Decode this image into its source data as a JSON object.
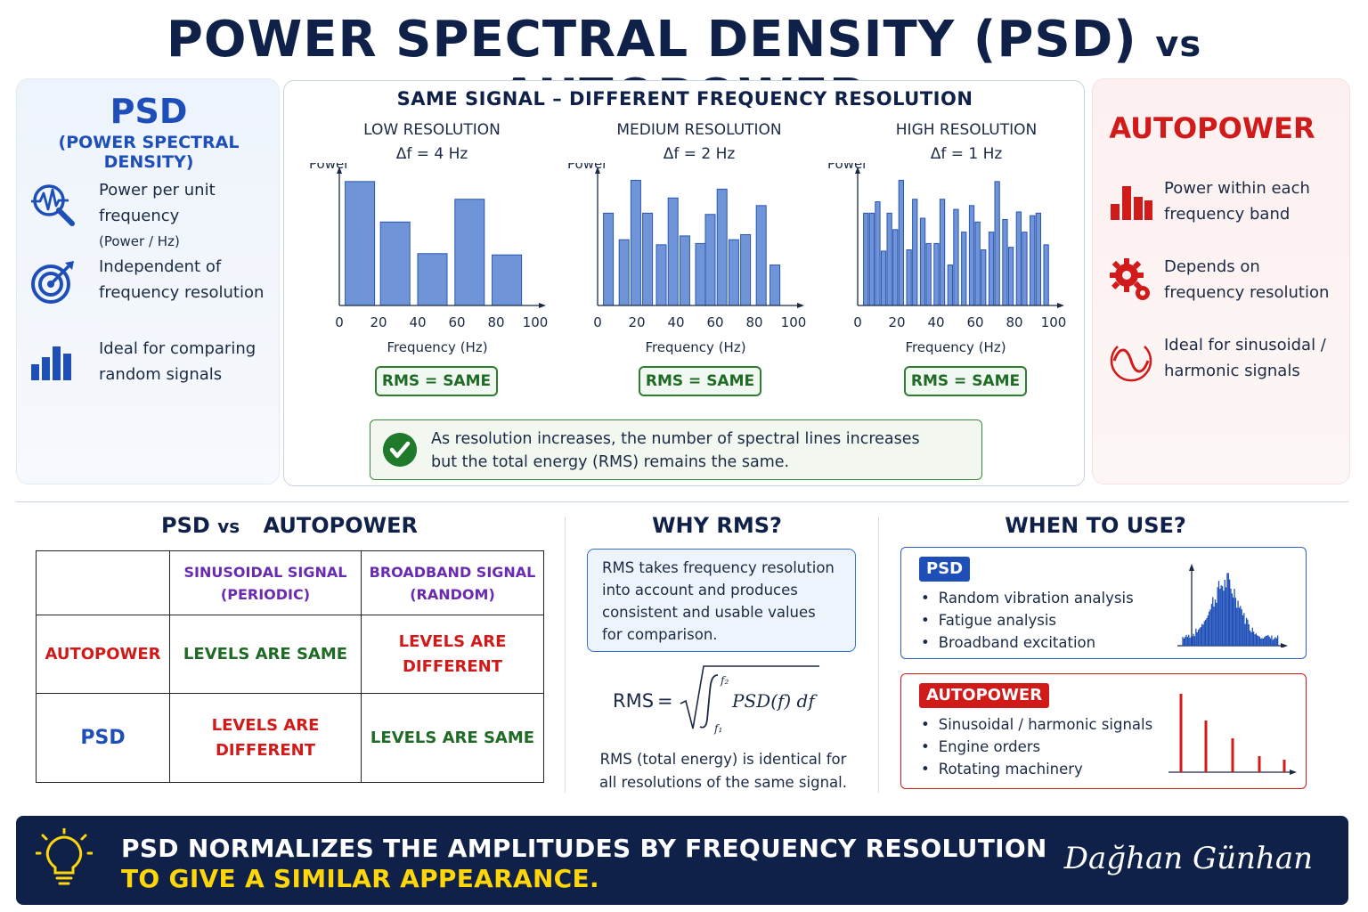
{
  "title": {
    "main": "POWER SPECTRAL DENSITY (PSD)",
    "vs": "vs",
    "end": "AUTOPOWER"
  },
  "psd_panel": {
    "title": "PSD",
    "subtitle": "(POWER SPECTRAL DENSITY)",
    "features": [
      {
        "icon": "pulse-magnifier-icon",
        "line1": "Power per unit frequency",
        "line2": "(Power / Hz)"
      },
      {
        "icon": "target-icon",
        "line1": "Independent of",
        "line2": "frequency resolution"
      },
      {
        "icon": "bar-chart-icon",
        "line1": "Ideal for comparing",
        "line2": "random signals"
      }
    ]
  },
  "autopower_panel": {
    "title": "AUTOPOWER",
    "features": [
      {
        "icon": "bar-chart-icon",
        "line1": "Power within each",
        "line2": "frequency band"
      },
      {
        "icon": "gear-icon",
        "line1": "Depends on",
        "line2": "frequency resolution"
      },
      {
        "icon": "sine-wave-icon",
        "line1": "Ideal for sinusoidal /",
        "line2": "harmonic signals"
      }
    ]
  },
  "center": {
    "title": "SAME SIGNAL – DIFFERENT FREQUENCY RESOLUTION",
    "charts": [
      {
        "heading": "LOW RESOLUTION",
        "df": "Δf = 4 Hz",
        "ylabel": "Power",
        "xlabel": "Frequency (Hz)",
        "rms": "RMS = SAME"
      },
      {
        "heading": "MEDIUM RESOLUTION",
        "df": "Δf = 2 Hz",
        "ylabel": "Power",
        "xlabel": "Frequency (Hz)",
        "rms": "RMS = SAME"
      },
      {
        "heading": "HIGH RESOLUTION",
        "df": "Δf = 1 Hz",
        "ylabel": "Power",
        "xlabel": "Frequency (Hz)",
        "rms": "RMS = SAME"
      }
    ],
    "note_line1": "As resolution increases, the number of spectral lines increases",
    "note_line2": "but the total energy (RMS) remains the same."
  },
  "chart_data": [
    {
      "type": "bar",
      "title": "LOW RESOLUTION",
      "xlabel": "Frequency (Hz)",
      "ylabel": "Power",
      "xlim": [
        0,
        100
      ],
      "xticks": [
        0,
        20,
        40,
        60,
        80,
        100
      ],
      "ylim": [
        0,
        1
      ],
      "x": [
        3,
        21,
        40,
        59,
        78
      ],
      "width": 15,
      "values": [
        0.98,
        0.66,
        0.41,
        0.84,
        0.4
      ]
    },
    {
      "type": "bar",
      "title": "MEDIUM RESOLUTION",
      "xlabel": "Frequency (Hz)",
      "ylabel": "Power",
      "xlim": [
        0,
        100
      ],
      "xticks": [
        0,
        20,
        40,
        60,
        80,
        100
      ],
      "ylim": [
        0,
        1
      ],
      "x": [
        3,
        11,
        17,
        23,
        30,
        36,
        42,
        50,
        55,
        61,
        67,
        73,
        81,
        88
      ],
      "width": 5,
      "values": [
        0.73,
        0.52,
        0.99,
        0.73,
        0.48,
        0.85,
        0.55,
        0.49,
        0.72,
        0.92,
        0.52,
        0.56,
        0.79,
        0.32
      ]
    },
    {
      "type": "bar",
      "title": "HIGH RESOLUTION",
      "xlabel": "Frequency (Hz)",
      "ylabel": "Power",
      "xlim": [
        0,
        100
      ],
      "xticks": [
        0,
        20,
        40,
        60,
        80,
        100
      ],
      "ylim": [
        0,
        1
      ],
      "x": [
        3,
        6,
        9,
        12,
        15,
        18,
        21,
        25,
        28,
        32,
        35,
        39,
        42,
        46,
        49,
        53,
        57,
        60,
        63,
        67,
        70,
        74,
        77,
        81,
        84,
        88,
        91,
        95
      ],
      "width": 2.4,
      "values": [
        0.73,
        0.73,
        0.82,
        0.43,
        0.73,
        0.6,
        0.99,
        0.44,
        0.84,
        0.69,
        0.49,
        0.49,
        0.84,
        0.32,
        0.76,
        0.58,
        0.79,
        0.66,
        0.44,
        0.58,
        0.98,
        0.68,
        0.46,
        0.74,
        0.58,
        0.71,
        0.73,
        0.48
      ]
    }
  ],
  "comparison": {
    "title_left": "PSD",
    "title_vs": "vs",
    "title_right": "AUTOPOWER",
    "col1_l1": "SINUSOIDAL SIGNAL",
    "col1_l2": "(PERIODIC)",
    "col2_l1": "BROADBAND SIGNAL",
    "col2_l2": "(RANDOM)",
    "row1_label": "AUTOPOWER",
    "row1_c1": "LEVELS ARE SAME",
    "row1_c2_l1": "LEVELS ARE",
    "row1_c2_l2": "DIFFERENT",
    "row2_label": "PSD",
    "row2_c1_l1": "LEVELS ARE",
    "row2_c1_l2": "DIFFERENT",
    "row2_c2": "LEVELS ARE SAME"
  },
  "why_rms": {
    "title": "WHY RMS?",
    "box_lines": [
      "RMS takes frequency resolution",
      "into account and produces",
      "consistent and usable values",
      "for comparison."
    ],
    "formula_lhs": "RMS",
    "formula_eq": "=",
    "formula_integrand": "PSD(f) df",
    "formula_upper": "f₂",
    "formula_lower": "f₁",
    "foot_line1": "RMS (total energy) is identical for",
    "foot_line2": "all resolutions of the same signal."
  },
  "when_to_use": {
    "title": "WHEN TO USE?",
    "psd_tag": "PSD",
    "psd_items": [
      "Random vibration analysis",
      "Fatigue analysis",
      "Broadband excitation"
    ],
    "ap_tag": "AUTOPOWER",
    "ap_items": [
      "Sinusoidal / harmonic signals",
      "Engine orders",
      "Rotating machinery"
    ]
  },
  "footer": {
    "line1": "PSD NORMALIZES THE AMPLITUDES BY FREQUENCY RESOLUTION",
    "line2": "TO GIVE A SIMILAR APPEARANCE.",
    "signature": "Dağhan Günhan"
  },
  "colors": {
    "navy": "#0f2149",
    "blue": "#1e4fb8",
    "red": "#d11a1a",
    "green": "#1f6b26",
    "purple": "#6a2bb0",
    "yellow": "#ffd60a",
    "bar_fill": "#6f95d8",
    "bar_stroke": "#2a55b0"
  }
}
